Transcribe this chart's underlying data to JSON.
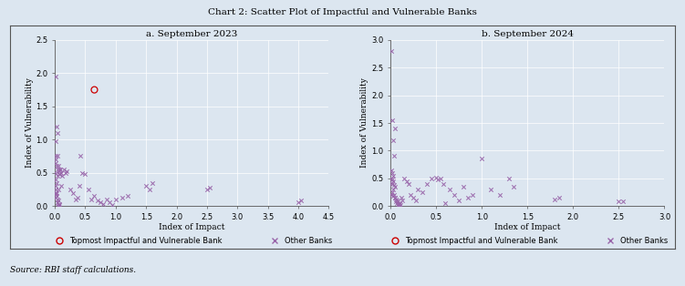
{
  "title": "Chart 2: Scatter Plot of Impactful and Vulnerable Banks",
  "source": "Source: RBI staff calculations.",
  "bg_color": "#dce6f0",
  "panel_bg": "#dce6f0",
  "subplot1_title": "a. September 2023",
  "subplot2_title": "b. September 2024",
  "xlabel": "Index of Impact",
  "ylabel": "Index of Vulnerability",
  "xlim1": [
    0,
    4.5
  ],
  "ylim1": [
    0,
    2.5
  ],
  "xticks1": [
    0.0,
    0.5,
    1.0,
    1.5,
    2.0,
    2.5,
    3.0,
    3.5,
    4.0,
    4.5
  ],
  "yticks1": [
    0.0,
    0.5,
    1.0,
    1.5,
    2.0,
    2.5
  ],
  "xlim2": [
    0,
    3.0
  ],
  "ylim2": [
    0,
    3.0
  ],
  "xticks2": [
    0.0,
    0.5,
    1.0,
    1.5,
    2.0,
    2.5,
    3.0
  ],
  "yticks2": [
    0.0,
    0.5,
    1.0,
    1.5,
    2.0,
    2.5,
    3.0
  ],
  "topmost1_x": [
    0.65
  ],
  "topmost1_y": [
    1.75
  ],
  "topmost2_x": [],
  "topmost2_y": [],
  "other_x1": [
    0.02,
    0.01,
    0.03,
    0.01,
    0.05,
    0.02,
    0.04,
    0.02,
    0.03,
    0.01,
    0.02,
    0.02,
    0.03,
    0.05,
    0.06,
    0.04,
    0.07,
    0.08,
    0.06,
    0.05,
    0.1,
    0.08,
    0.12,
    0.07,
    0.09,
    0.11,
    0.06,
    0.03,
    0.01,
    0.02,
    0.15,
    0.2,
    0.18,
    0.25,
    0.3,
    0.4,
    0.42,
    0.45,
    0.35,
    0.38,
    0.5,
    0.55,
    0.6,
    0.65,
    0.7,
    0.75,
    0.8,
    0.85,
    0.9,
    0.95,
    1.0,
    1.1,
    1.2,
    1.5,
    1.55,
    1.6,
    2.5,
    2.55,
    4.0,
    4.05,
    0.02,
    0.03,
    0.04,
    0.02,
    0.05,
    0.06,
    0.07,
    0.08
  ],
  "other_y1": [
    0.7,
    0.75,
    0.6,
    0.65,
    0.55,
    0.5,
    0.45,
    0.4,
    0.35,
    0.3,
    0.25,
    0.2,
    0.15,
    0.1,
    0.08,
    0.05,
    0.03,
    0.02,
    0.01,
    0.0,
    0.5,
    0.48,
    0.45,
    0.52,
    0.55,
    0.3,
    0.25,
    0.2,
    0.18,
    0.12,
    0.55,
    0.52,
    0.5,
    0.25,
    0.2,
    0.3,
    0.75,
    0.5,
    0.1,
    0.12,
    0.48,
    0.25,
    0.1,
    0.15,
    0.08,
    0.05,
    0.03,
    0.1,
    0.05,
    0.02,
    0.1,
    0.12,
    0.15,
    0.3,
    0.25,
    0.35,
    0.25,
    0.28,
    0.05,
    0.08,
    1.95,
    1.2,
    1.1,
    0.98,
    0.75,
    0.6,
    0.55,
    0.48
  ],
  "other_x2": [
    0.01,
    0.02,
    0.03,
    0.01,
    0.02,
    0.04,
    0.05,
    0.03,
    0.02,
    0.01,
    0.03,
    0.05,
    0.06,
    0.07,
    0.08,
    0.09,
    0.1,
    0.11,
    0.12,
    0.13,
    0.15,
    0.18,
    0.2,
    0.22,
    0.25,
    0.28,
    0.3,
    0.35,
    0.4,
    0.45,
    0.5,
    0.52,
    0.55,
    0.58,
    0.6,
    0.65,
    0.7,
    0.75,
    0.8,
    0.85,
    0.9,
    1.0,
    1.1,
    1.2,
    1.3,
    1.35,
    1.8,
    1.85,
    2.5,
    2.55,
    0.01,
    0.02,
    0.03,
    0.04,
    0.05,
    0.06,
    0.07,
    0.08,
    0.09,
    0.1,
    0.01,
    0.02,
    0.03,
    0.04,
    0.05
  ],
  "other_y2": [
    0.5,
    0.48,
    0.45,
    0.42,
    0.4,
    0.38,
    0.35,
    0.3,
    0.25,
    0.2,
    0.18,
    0.15,
    0.12,
    0.1,
    0.08,
    0.05,
    0.03,
    0.02,
    0.15,
    0.1,
    0.5,
    0.45,
    0.4,
    0.2,
    0.15,
    0.1,
    0.3,
    0.25,
    0.4,
    0.5,
    0.52,
    0.48,
    0.5,
    0.4,
    0.05,
    0.3,
    0.2,
    0.1,
    0.35,
    0.15,
    0.2,
    0.85,
    0.3,
    0.2,
    0.5,
    0.35,
    0.12,
    0.15,
    0.08,
    0.08,
    0.65,
    0.6,
    0.55,
    0.2,
    0.15,
    0.08,
    0.05,
    0.02,
    0.01,
    0.0,
    2.8,
    1.55,
    1.18,
    0.9,
    1.4
  ],
  "scatter_color": "#9966aa",
  "topmost_color": "#cc0000",
  "marker_other": "x",
  "marker_topmost": "o",
  "legend_label_topmost": "Topmost Impactful and Vulnerable Bank",
  "legend_label_other": "Other Banks",
  "title_fontsize": 7.5,
  "label_fontsize": 6.5,
  "tick_fontsize": 6,
  "legend_fontsize": 6,
  "subplot_title_fontsize": 7.5
}
